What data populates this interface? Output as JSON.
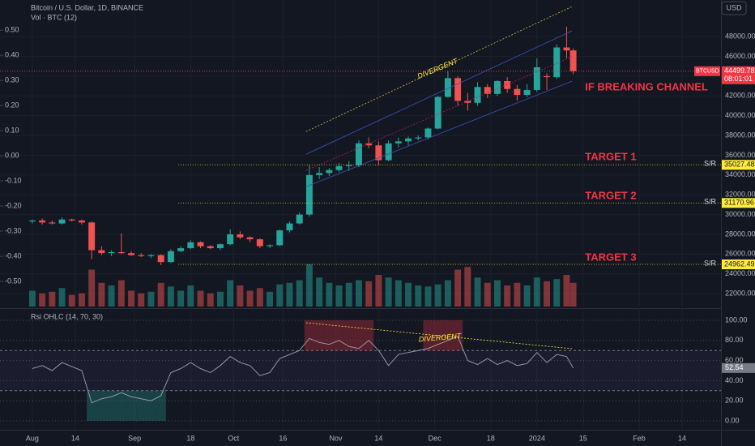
{
  "chart_data": {
    "type": "candlestick",
    "title": "Bitcoin / U.S. Dollar, 1D, BINANCE",
    "volume_label": "Vol · BTC (12)",
    "currency": "USD",
    "up_color": "#26a69a",
    "down_color": "#ef5350",
    "x": [
      0,
      3,
      6,
      9,
      12,
      15,
      18,
      21,
      24,
      27,
      30,
      33,
      36,
      39,
      42,
      45,
      48,
      51,
      54,
      57,
      60,
      63,
      66,
      69,
      72,
      75,
      78,
      81,
      84,
      87,
      90,
      93,
      96,
      99,
      102,
      105,
      108,
      111,
      114,
      117,
      120,
      123,
      126,
      129,
      132,
      135,
      138,
      141,
      144,
      147,
      150,
      153,
      156,
      159,
      162,
      164
    ],
    "open": [
      29300,
      29400,
      29200,
      29100,
      29500,
      29400,
      29200,
      26400,
      26100,
      26200,
      26100,
      25900,
      25800,
      25900,
      25200,
      26300,
      26600,
      27200,
      26800,
      26600,
      27000,
      28000,
      27700,
      27500,
      26800,
      26900,
      28400,
      29100,
      30000,
      34000,
      34200,
      34500,
      34900,
      35000,
      37200,
      37000,
      35500,
      37200,
      37400,
      37700,
      37800,
      38700,
      41900,
      43800,
      41500,
      41300,
      42900,
      42200,
      43500,
      42700,
      42100,
      42600,
      44000,
      43900,
      46900,
      46600
    ],
    "high": [
      29500,
      29600,
      29400,
      29700,
      29600,
      29500,
      29300,
      26800,
      26400,
      28100,
      26300,
      26100,
      26000,
      26000,
      26500,
      26800,
      27400,
      27300,
      26900,
      27100,
      28500,
      28300,
      27800,
      27600,
      27000,
      28500,
      29300,
      30200,
      35000,
      34800,
      34700,
      35200,
      35400,
      37500,
      37800,
      37400,
      37500,
      37800,
      37900,
      38000,
      38800,
      42000,
      44500,
      44000,
      42300,
      43400,
      43200,
      43600,
      43900,
      43100,
      43200,
      45800,
      44300,
      47200,
      49000,
      46800
    ],
    "low": [
      29100,
      29000,
      29000,
      29000,
      29300,
      29000,
      25500,
      25900,
      25800,
      26000,
      25800,
      25700,
      25600,
      24900,
      25100,
      26200,
      26500,
      26600,
      26500,
      26400,
      26900,
      27500,
      27200,
      26600,
      26600,
      26800,
      28200,
      29000,
      29800,
      33600,
      33900,
      34300,
      34400,
      34800,
      36700,
      35000,
      35400,
      36800,
      37000,
      37500,
      37600,
      38600,
      41800,
      41000,
      40500,
      41000,
      41800,
      42000,
      42300,
      41500,
      41900,
      42400,
      42600,
      43700,
      45800,
      44200
    ],
    "close": [
      29400,
      29200,
      29100,
      29500,
      29400,
      29200,
      26400,
      26100,
      26200,
      26100,
      25900,
      25800,
      25900,
      25200,
      26300,
      26600,
      27200,
      26800,
      26600,
      27000,
      28000,
      27700,
      27500,
      26800,
      26900,
      28400,
      29100,
      30000,
      34000,
      34200,
      34500,
      34900,
      35000,
      37200,
      37000,
      35500,
      37200,
      37400,
      37700,
      37800,
      38700,
      41900,
      43800,
      41500,
      41300,
      42900,
      42200,
      43500,
      42700,
      42100,
      42600,
      44900,
      43900,
      46900,
      46600,
      44500
    ],
    "volume": [
      30,
      25,
      28,
      35,
      22,
      25,
      70,
      45,
      40,
      50,
      30,
      25,
      28,
      45,
      38,
      30,
      40,
      30,
      25,
      28,
      50,
      40,
      30,
      35,
      28,
      42,
      45,
      50,
      80,
      55,
      45,
      40,
      45,
      50,
      48,
      60,
      55,
      50,
      45,
      40,
      38,
      42,
      50,
      70,
      75,
      55,
      45,
      50,
      40,
      45,
      40,
      55,
      48,
      52,
      60,
      45
    ],
    "volume_lim": [
      0,
      100
    ],
    "xlim": [
      -9.8,
      208.8
    ],
    "xticks": [
      {
        "value": 0,
        "label": "Aug"
      },
      {
        "value": 13,
        "label": "14"
      },
      {
        "value": 31,
        "label": "Sep"
      },
      {
        "value": 48,
        "label": "18"
      },
      {
        "value": 61,
        "label": "Oct"
      },
      {
        "value": 76,
        "label": "16"
      },
      {
        "value": 92,
        "label": "Nov"
      },
      {
        "value": 105,
        "label": "14"
      },
      {
        "value": 122,
        "label": "Dec"
      },
      {
        "value": 139,
        "label": "18"
      },
      {
        "value": 153,
        "label": "2024"
      },
      {
        "value": 167,
        "label": "15"
      },
      {
        "value": 184,
        "label": "Feb"
      },
      {
        "value": 197,
        "label": "14"
      }
    ],
    "ylim": [
      20700,
      51700
    ],
    "yticks": [
      {
        "value": 48000,
        "label": "48000.00"
      },
      {
        "value": 46000,
        "label": "46000.00"
      },
      {
        "value": 44000,
        "label": "44000.00"
      },
      {
        "value": 42000,
        "label": "42000.00"
      },
      {
        "value": 40000,
        "label": "40000.00"
      },
      {
        "value": 38000,
        "label": "38000.00"
      },
      {
        "value": 36000,
        "label": "36000.00"
      },
      {
        "value": 34000,
        "label": "34000.00"
      },
      {
        "value": 32000,
        "label": "32000.00"
      },
      {
        "value": 30000,
        "label": "30000.00"
      },
      {
        "value": 28000,
        "label": "28000.00"
      },
      {
        "value": 26000,
        "label": "26000.00"
      },
      {
        "value": 24000,
        "label": "24000.00"
      },
      {
        "value": 22000,
        "label": "22000.00"
      }
    ],
    "y2lim": [
      -0.6,
      0.62
    ],
    "y2ticks": [
      {
        "value": 0.5,
        "label": "0.50"
      },
      {
        "value": 0.4,
        "label": "0.40"
      },
      {
        "value": 0.3,
        "label": "0.30"
      },
      {
        "value": 0.2,
        "label": "0.20"
      },
      {
        "value": 0.1,
        "label": "0.10"
      },
      {
        "value": 0,
        "label": "0.00"
      },
      {
        "value": -0.1,
        "label": "-0.10"
      },
      {
        "value": -0.2,
        "label": "-0.20"
      },
      {
        "value": -0.3,
        "label": "-0.30"
      },
      {
        "value": -0.4,
        "label": "-0.40"
      },
      {
        "value": -0.5,
        "label": "-0.50"
      }
    ],
    "last_price": {
      "symbol": "BTCUSD",
      "value": 44499.78,
      "countdown": "08:01:01",
      "color": "#f23645"
    },
    "levels": [
      {
        "tag": "S/R",
        "value": 35027.48
      },
      {
        "tag": "S/R",
        "value": 31170.96
      },
      {
        "tag": "S/R",
        "value": 24962.49
      }
    ],
    "level_color": "#ffeb3b",
    "channel": [
      {
        "color": "#d4c04a",
        "x": [
          83,
          163.6
        ],
        "y": [
          38400,
          51030
        ]
      },
      {
        "color": "#3f51b5",
        "x": [
          83,
          163.6
        ],
        "y": [
          36100,
          48570
        ]
      },
      {
        "color": "#c2185b",
        "x": [
          83,
          163.6
        ],
        "y": [
          34460,
          45950
        ]
      },
      {
        "color": "#3f51b5",
        "x": [
          83,
          163.6
        ],
        "y": [
          32820,
          43490
        ]
      }
    ],
    "annotations": [
      {
        "text": "DIVERGENT",
        "x": 122.9,
        "y": 44720,
        "color": "#ffeb3b"
      },
      {
        "text": "IF BREAKING CHANNEL",
        "x": 167.6,
        "y": 42830,
        "color": "#f23645"
      },
      {
        "text": "TARGET 1",
        "x": 167.6,
        "y": 35780,
        "color": "#f23645"
      },
      {
        "text": "TARGET 2",
        "x": 167.6,
        "y": 31840,
        "color": "#f23645"
      },
      {
        "text": "TARGET 3",
        "x": 167.6,
        "y": 25610,
        "color": "#f23645"
      }
    ],
    "rsi": {
      "label": "Rsi OHLC (14, 70, 30)",
      "color": "#9598a1",
      "values": [
        52,
        55,
        50,
        58,
        54,
        50,
        18,
        22,
        24,
        28,
        24,
        22,
        20,
        25,
        48,
        52,
        58,
        52,
        48,
        55,
        64,
        58,
        55,
        45,
        48,
        62,
        66,
        70,
        82,
        78,
        76,
        80,
        74,
        72,
        80,
        70,
        55,
        66,
        68,
        70,
        72,
        76,
        80,
        84,
        60,
        56,
        62,
        56,
        60,
        55,
        57,
        68,
        58,
        66,
        64,
        52.54
      ],
      "ylim": [
        -8.9,
        109.7
      ],
      "yticks": [
        {
          "value": 100,
          "label": "100.00"
        },
        {
          "value": 80,
          "label": "80.00"
        },
        {
          "value": 60,
          "label": "60.00"
        },
        {
          "value": 40,
          "label": "40.00"
        },
        {
          "value": 20,
          "label": "20.00"
        },
        {
          "value": 0,
          "label": "0.00"
        }
      ],
      "upper": 70,
      "lower": 30,
      "divergence": {
        "text": "DIVERGENT",
        "x": [
          83,
          163.6
        ],
        "y": [
          97.6,
          71.8
        ],
        "label_x": 123.6,
        "label_y": 82.3,
        "color": "#ffeb3b"
      }
    }
  }
}
